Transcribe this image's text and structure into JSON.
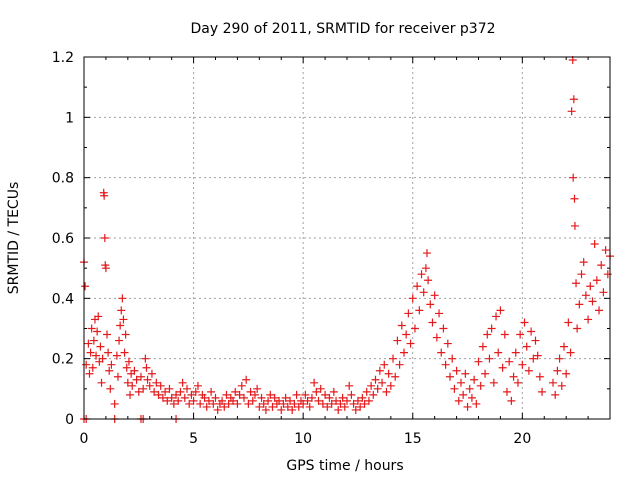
{
  "chart_data": {
    "type": "scatter",
    "title": "Day 290 of 2011, SRMTID for receiver p372",
    "xlabel": "GPS time / hours",
    "ylabel": "SRMTID / TECUs",
    "xlim": [
      0,
      24
    ],
    "ylim": [
      0,
      1.2
    ],
    "xticks": [
      0,
      5,
      10,
      15,
      20
    ],
    "xtick_labels": [
      "0",
      "5",
      "10",
      "15",
      "20"
    ],
    "yticks": [
      0,
      0.2,
      0.4,
      0.6,
      0.8,
      1.0,
      1.2
    ],
    "ytick_labels": [
      "0",
      "0.2",
      "0.4",
      "0.6",
      "0.8",
      "1",
      "1.2"
    ],
    "grid": true,
    "marker": "+",
    "color": "#e41a1c",
    "series": [
      {
        "name": "SRMTID",
        "points": [
          [
            0.0,
            0.52
          ],
          [
            0.05,
            0.44
          ],
          [
            0.1,
            0.18
          ],
          [
            0.2,
            0.25
          ],
          [
            0.25,
            0.15
          ],
          [
            0.3,
            0.22
          ],
          [
            0.35,
            0.3
          ],
          [
            0.4,
            0.17
          ],
          [
            0.45,
            0.26
          ],
          [
            0.5,
            0.33
          ],
          [
            0.55,
            0.21
          ],
          [
            0.6,
            0.29
          ],
          [
            0.65,
            0.34
          ],
          [
            0.7,
            0.19
          ],
          [
            0.75,
            0.24
          ],
          [
            0.8,
            0.12
          ],
          [
            0.85,
            0.2
          ],
          [
            0.9,
            0.75
          ],
          [
            0.92,
            0.74
          ],
          [
            0.95,
            0.6
          ],
          [
            0.97,
            0.51
          ],
          [
            1.0,
            0.5
          ],
          [
            1.05,
            0.28
          ],
          [
            1.1,
            0.22
          ],
          [
            1.15,
            0.16
          ],
          [
            1.2,
            0.1
          ],
          [
            1.25,
            0.18
          ],
          [
            1.4,
            0.05
          ],
          [
            1.5,
            0.21
          ],
          [
            1.55,
            0.14
          ],
          [
            1.6,
            0.26
          ],
          [
            1.65,
            0.31
          ],
          [
            1.7,
            0.36
          ],
          [
            1.75,
            0.4
          ],
          [
            1.8,
            0.33
          ],
          [
            1.85,
            0.22
          ],
          [
            1.9,
            0.28
          ],
          [
            1.95,
            0.17
          ],
          [
            2.0,
            0.12
          ],
          [
            2.05,
            0.19
          ],
          [
            2.1,
            0.08
          ],
          [
            2.15,
            0.15
          ],
          [
            2.2,
            0.11
          ],
          [
            2.3,
            0.16
          ],
          [
            2.4,
            0.13
          ],
          [
            2.5,
            0.09
          ],
          [
            2.6,
            0.14
          ],
          [
            2.7,
            0.1
          ],
          [
            2.8,
            0.2
          ],
          [
            2.85,
            0.17
          ],
          [
            2.9,
            0.13
          ],
          [
            3.0,
            0.11
          ],
          [
            3.1,
            0.15
          ],
          [
            3.2,
            0.09
          ],
          [
            3.3,
            0.12
          ],
          [
            3.4,
            0.08
          ],
          [
            3.5,
            0.11
          ],
          [
            3.6,
            0.07
          ],
          [
            3.7,
            0.09
          ],
          [
            3.8,
            0.06
          ],
          [
            3.9,
            0.1
          ],
          [
            4.0,
            0.07
          ],
          [
            4.1,
            0.05
          ],
          [
            4.2,
            0.08
          ],
          [
            4.3,
            0.06
          ],
          [
            4.4,
            0.09
          ],
          [
            4.5,
            0.12
          ],
          [
            4.6,
            0.07
          ],
          [
            4.7,
            0.1
          ],
          [
            4.8,
            0.05
          ],
          [
            4.9,
            0.08
          ],
          [
            5.0,
            0.06
          ],
          [
            5.1,
            0.09
          ],
          [
            5.2,
            0.11
          ],
          [
            5.3,
            0.05
          ],
          [
            5.4,
            0.08
          ],
          [
            5.5,
            0.07
          ],
          [
            5.6,
            0.04
          ],
          [
            5.7,
            0.06
          ],
          [
            5.8,
            0.09
          ],
          [
            5.9,
            0.05
          ],
          [
            6.0,
            0.07
          ],
          [
            6.1,
            0.03
          ],
          [
            6.2,
            0.05
          ],
          [
            6.3,
            0.06
          ],
          [
            6.4,
            0.04
          ],
          [
            6.5,
            0.08
          ],
          [
            6.6,
            0.05
          ],
          [
            6.7,
            0.07
          ],
          [
            6.8,
            0.06
          ],
          [
            6.9,
            0.09
          ],
          [
            7.0,
            0.05
          ],
          [
            7.1,
            0.08
          ],
          [
            7.2,
            0.11
          ],
          [
            7.3,
            0.07
          ],
          [
            7.4,
            0.13
          ],
          [
            7.5,
            0.05
          ],
          [
            7.6,
            0.09
          ],
          [
            7.7,
            0.06
          ],
          [
            7.8,
            0.08
          ],
          [
            7.9,
            0.1
          ],
          [
            8.0,
            0.04
          ],
          [
            8.1,
            0.07
          ],
          [
            8.2,
            0.05
          ],
          [
            8.3,
            0.03
          ],
          [
            8.4,
            0.06
          ],
          [
            8.5,
            0.08
          ],
          [
            8.6,
            0.04
          ],
          [
            8.7,
            0.07
          ],
          [
            8.8,
            0.05
          ],
          [
            8.9,
            0.06
          ],
          [
            9.0,
            0.03
          ],
          [
            9.1,
            0.05
          ],
          [
            9.2,
            0.07
          ],
          [
            9.3,
            0.04
          ],
          [
            9.4,
            0.06
          ],
          [
            9.5,
            0.03
          ],
          [
            9.6,
            0.05
          ],
          [
            9.7,
            0.08
          ],
          [
            9.8,
            0.04
          ],
          [
            9.9,
            0.06
          ],
          [
            10.0,
            0.05
          ],
          [
            10.1,
            0.08
          ],
          [
            10.2,
            0.06
          ],
          [
            10.3,
            0.04
          ],
          [
            10.4,
            0.07
          ],
          [
            10.5,
            0.12
          ],
          [
            10.6,
            0.09
          ],
          [
            10.7,
            0.06
          ],
          [
            10.8,
            0.1
          ],
          [
            10.9,
            0.05
          ],
          [
            11.0,
            0.08
          ],
          [
            11.1,
            0.04
          ],
          [
            11.2,
            0.07
          ],
          [
            11.3,
            0.05
          ],
          [
            11.4,
            0.09
          ],
          [
            11.5,
            0.06
          ],
          [
            11.6,
            0.03
          ],
          [
            11.7,
            0.05
          ],
          [
            11.8,
            0.07
          ],
          [
            11.9,
            0.04
          ],
          [
            12.0,
            0.06
          ],
          [
            12.1,
            0.11
          ],
          [
            12.2,
            0.08
          ],
          [
            12.3,
            0.05
          ],
          [
            12.4,
            0.03
          ],
          [
            12.5,
            0.06
          ],
          [
            12.6,
            0.04
          ],
          [
            12.7,
            0.07
          ],
          [
            12.8,
            0.05
          ],
          [
            12.9,
            0.09
          ],
          [
            13.0,
            0.06
          ],
          [
            13.1,
            0.11
          ],
          [
            13.2,
            0.08
          ],
          [
            13.3,
            0.13
          ],
          [
            13.4,
            0.1
          ],
          [
            13.5,
            0.16
          ],
          [
            13.6,
            0.12
          ],
          [
            13.7,
            0.18
          ],
          [
            13.8,
            0.09
          ],
          [
            13.9,
            0.15
          ],
          [
            14.0,
            0.11
          ],
          [
            14.1,
            0.2
          ],
          [
            14.2,
            0.14
          ],
          [
            14.3,
            0.26
          ],
          [
            14.4,
            0.18
          ],
          [
            14.5,
            0.31
          ],
          [
            14.6,
            0.22
          ],
          [
            14.7,
            0.28
          ],
          [
            14.8,
            0.35
          ],
          [
            14.9,
            0.25
          ],
          [
            15.0,
            0.4
          ],
          [
            15.1,
            0.3
          ],
          [
            15.2,
            0.44
          ],
          [
            15.3,
            0.36
          ],
          [
            15.4,
            0.48
          ],
          [
            15.5,
            0.42
          ],
          [
            15.6,
            0.5
          ],
          [
            15.65,
            0.55
          ],
          [
            15.7,
            0.46
          ],
          [
            15.8,
            0.38
          ],
          [
            15.9,
            0.32
          ],
          [
            16.0,
            0.41
          ],
          [
            16.1,
            0.27
          ],
          [
            16.2,
            0.35
          ],
          [
            16.3,
            0.22
          ],
          [
            16.4,
            0.3
          ],
          [
            16.5,
            0.18
          ],
          [
            16.6,
            0.25
          ],
          [
            16.7,
            0.14
          ],
          [
            16.8,
            0.2
          ],
          [
            16.9,
            0.1
          ],
          [
            17.0,
            0.16
          ],
          [
            17.1,
            0.06
          ],
          [
            17.2,
            0.12
          ],
          [
            17.3,
            0.08
          ],
          [
            17.4,
            0.15
          ],
          [
            17.5,
            0.04
          ],
          [
            17.6,
            0.1
          ],
          [
            17.7,
            0.07
          ],
          [
            17.8,
            0.13
          ],
          [
            17.9,
            0.05
          ],
          [
            18.0,
            0.19
          ],
          [
            18.1,
            0.11
          ],
          [
            18.2,
            0.24
          ],
          [
            18.3,
            0.15
          ],
          [
            18.4,
            0.28
          ],
          [
            18.5,
            0.2
          ],
          [
            18.6,
            0.3
          ],
          [
            18.7,
            0.12
          ],
          [
            18.8,
            0.34
          ],
          [
            18.9,
            0.22
          ],
          [
            19.0,
            0.36
          ],
          [
            19.1,
            0.17
          ],
          [
            19.2,
            0.28
          ],
          [
            19.3,
            0.09
          ],
          [
            19.4,
            0.19
          ],
          [
            19.5,
            0.06
          ],
          [
            19.6,
            0.14
          ],
          [
            19.7,
            0.22
          ],
          [
            19.8,
            0.12
          ],
          [
            19.9,
            0.28
          ],
          [
            20.0,
            0.18
          ],
          [
            20.1,
            0.32
          ],
          [
            20.2,
            0.24
          ],
          [
            20.3,
            0.16
          ],
          [
            20.4,
            0.29
          ],
          [
            20.5,
            0.2
          ],
          [
            20.6,
            0.26
          ],
          [
            20.7,
            0.21
          ],
          [
            20.8,
            0.14
          ],
          [
            20.9,
            0.09
          ],
          [
            21.4,
            0.12
          ],
          [
            21.5,
            0.08
          ],
          [
            21.6,
            0.16
          ],
          [
            21.7,
            0.2
          ],
          [
            21.8,
            0.11
          ],
          [
            21.9,
            0.24
          ],
          [
            22.0,
            0.15
          ],
          [
            22.1,
            0.32
          ],
          [
            22.2,
            0.22
          ],
          [
            22.25,
            1.02
          ],
          [
            22.3,
            1.19
          ],
          [
            22.32,
            0.8
          ],
          [
            22.35,
            1.06
          ],
          [
            22.38,
            0.73
          ],
          [
            22.4,
            0.64
          ],
          [
            22.45,
            0.45
          ],
          [
            22.5,
            0.3
          ],
          [
            22.6,
            0.38
          ],
          [
            22.7,
            0.48
          ],
          [
            22.8,
            0.52
          ],
          [
            22.9,
            0.41
          ],
          [
            23.0,
            0.33
          ],
          [
            23.1,
            0.44
          ],
          [
            23.2,
            0.39
          ],
          [
            23.3,
            0.58
          ],
          [
            23.4,
            0.46
          ],
          [
            23.5,
            0.36
          ],
          [
            23.6,
            0.51
          ],
          [
            23.7,
            0.42
          ],
          [
            23.8,
            0.56
          ],
          [
            23.9,
            0.48
          ],
          [
            24.0,
            0.54
          ],
          [
            0.0,
            0.0
          ],
          [
            0.1,
            0.0
          ],
          [
            1.4,
            0.0
          ],
          [
            2.6,
            0.0
          ],
          [
            2.7,
            0.0
          ],
          [
            4.2,
            0.0
          ]
        ]
      }
    ]
  }
}
